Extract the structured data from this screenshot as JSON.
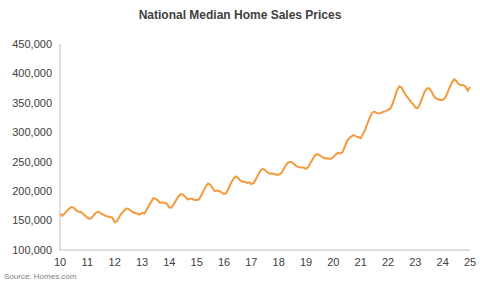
{
  "chart_data": {
    "type": "line",
    "title": "National Median Home Sales Prices",
    "source": "Source: Homes.com",
    "categories": [
      "10",
      null,
      null,
      null,
      null,
      null,
      null,
      null,
      null,
      null,
      null,
      null,
      "11",
      null,
      null,
      null,
      null,
      null,
      null,
      null,
      null,
      null,
      null,
      null,
      "12",
      null,
      null,
      null,
      null,
      null,
      null,
      null,
      null,
      null,
      null,
      null,
      "13",
      null,
      null,
      null,
      null,
      null,
      null,
      null,
      null,
      null,
      null,
      null,
      "14",
      null,
      null,
      null,
      null,
      null,
      null,
      null,
      null,
      null,
      null,
      null,
      "15",
      null,
      null,
      null,
      null,
      null,
      null,
      null,
      null,
      null,
      null,
      null,
      "16",
      null,
      null,
      null,
      null,
      null,
      null,
      null,
      null,
      null,
      null,
      null,
      "17",
      null,
      null,
      null,
      null,
      null,
      null,
      null,
      null,
      null,
      null,
      null,
      "18",
      null,
      null,
      null,
      null,
      null,
      null,
      null,
      null,
      null,
      null,
      null,
      "19",
      null,
      null,
      null,
      null,
      null,
      null,
      null,
      null,
      null,
      null,
      null,
      "20",
      null,
      null,
      null,
      null,
      null,
      null,
      null,
      null,
      null,
      null,
      null,
      "21",
      null,
      null,
      null,
      null,
      null,
      null,
      null,
      null,
      null,
      null,
      null,
      "22",
      null,
      null,
      null,
      null,
      null,
      null,
      null,
      null,
      null,
      null,
      null,
      "23",
      null,
      null,
      null,
      null,
      null,
      null,
      null,
      null,
      null,
      null,
      null,
      "24",
      null,
      null,
      null,
      null,
      null,
      null,
      null,
      null,
      null,
      null,
      null,
      "25"
    ],
    "values": [
      162000,
      158000,
      162000,
      166000,
      170000,
      173000,
      172000,
      168000,
      165000,
      165000,
      162000,
      158000,
      155000,
      153000,
      155000,
      160000,
      164000,
      165000,
      162000,
      160000,
      158000,
      157000,
      156000,
      155000,
      147000,
      149000,
      156000,
      162000,
      166000,
      170000,
      170000,
      167000,
      164000,
      163000,
      162000,
      160000,
      163000,
      162000,
      168000,
      175000,
      182000,
      188000,
      187000,
      184000,
      180000,
      181000,
      180000,
      178000,
      172000,
      172000,
      178000,
      185000,
      191000,
      195000,
      194000,
      190000,
      186000,
      187000,
      187000,
      185000,
      185000,
      186000,
      193000,
      200000,
      208000,
      213000,
      211000,
      205000,
      200000,
      201000,
      200000,
      198000,
      195000,
      197000,
      205000,
      213000,
      220000,
      225000,
      223000,
      219000,
      216000,
      216000,
      214000,
      215000,
      212000,
      214000,
      220000,
      228000,
      235000,
      238000,
      236000,
      232000,
      230000,
      230000,
      229000,
      228000,
      228000,
      230000,
      236000,
      243000,
      248000,
      250000,
      249000,
      245000,
      242000,
      241000,
      240000,
      240000,
      238000,
      241000,
      248000,
      255000,
      261000,
      263000,
      261000,
      258000,
      256000,
      256000,
      255000,
      255000,
      258000,
      262000,
      265000,
      264000,
      266000,
      275000,
      285000,
      290000,
      293000,
      295000,
      293000,
      292000,
      290000,
      297000,
      305000,
      315000,
      325000,
      333000,
      335000,
      333000,
      332000,
      333000,
      335000,
      336000,
      338000,
      340000,
      348000,
      360000,
      372000,
      378000,
      376000,
      368000,
      362000,
      357000,
      352000,
      348000,
      342000,
      341000,
      348000,
      358000,
      368000,
      374000,
      375000,
      370000,
      362000,
      358000,
      356000,
      355000,
      355000,
      358000,
      366000,
      376000,
      384000,
      390000,
      387000,
      382000,
      380000,
      380000,
      378000,
      371000,
      377000
    ],
    "color": "#f39a3d",
    "ylim": [
      100000,
      450000
    ],
    "yticks": [
      {
        "value": 100000,
        "label": "100,000"
      },
      {
        "value": 150000,
        "label": "150,000"
      },
      {
        "value": 200000,
        "label": "200,000"
      },
      {
        "value": 250000,
        "label": "250,000"
      },
      {
        "value": 300000,
        "label": "300,000"
      },
      {
        "value": 350000,
        "label": "350,000"
      },
      {
        "value": 400000,
        "label": "400,000"
      },
      {
        "value": 450000,
        "label": "450,000"
      }
    ],
    "grid": false
  }
}
